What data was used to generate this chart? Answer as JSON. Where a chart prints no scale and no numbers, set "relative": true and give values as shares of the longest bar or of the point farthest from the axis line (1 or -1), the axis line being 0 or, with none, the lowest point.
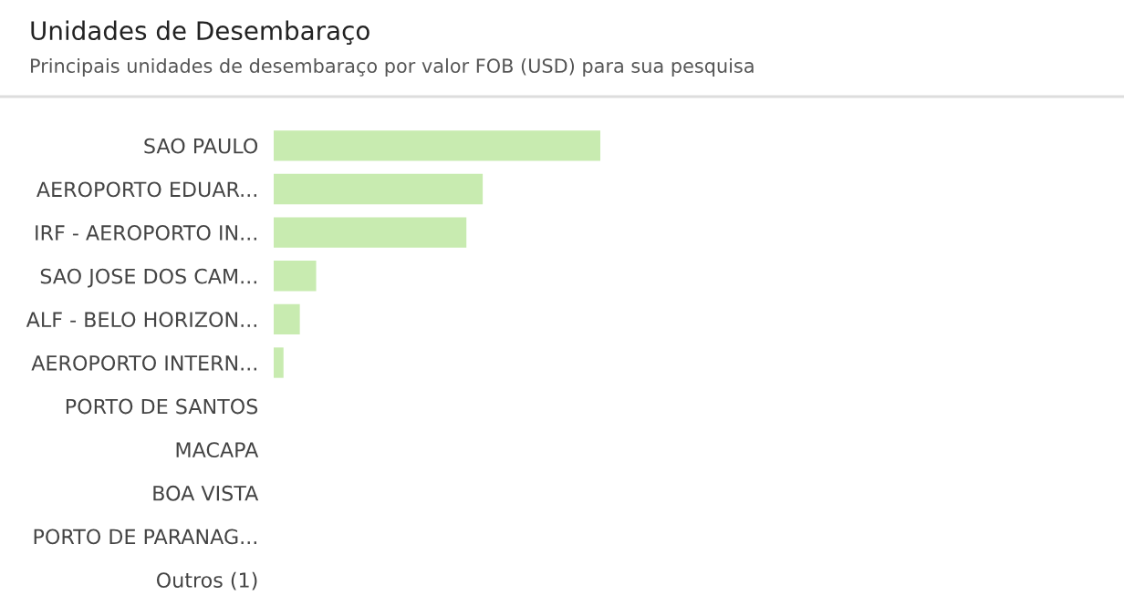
{
  "chart_data": {
    "type": "bar",
    "orientation": "horizontal",
    "relative": true,
    "title": "Unidades de Desembaraço",
    "subtitle": "Principais unidades de desembaraço por valor FOB (USD) para sua pesquisa",
    "categories": [
      "SAO PAULO",
      "AEROPORTO EDUAR...",
      "IRF - AEROPORTO IN...",
      "SAO JOSE DOS CAM...",
      "ALF - BELO HORIZON...",
      "AEROPORTO INTERN...",
      "PORTO DE SANTOS",
      "MACAPA",
      "BOA VISTA",
      "PORTO DE PARANAG...",
      "Outros (1)"
    ],
    "values": [
      1,
      0.64,
      0.59,
      0.13,
      0.08,
      0.03,
      0,
      0,
      0,
      0,
      0
    ],
    "color": "#c8ebb0",
    "grid": false,
    "legend": false
  }
}
